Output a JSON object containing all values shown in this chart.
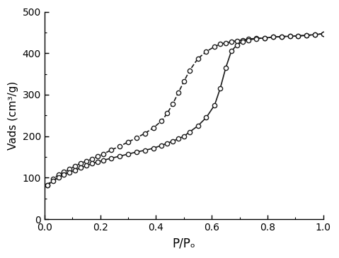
{
  "title": "",
  "xlabel": "P/Pₒ",
  "ylabel": "Vads (cm³/g)",
  "xlim": [
    0.0,
    1.0
  ],
  "ylim": [
    0,
    500
  ],
  "xticks": [
    0.0,
    0.2,
    0.4,
    0.6,
    0.8,
    1.0
  ],
  "yticks": [
    0,
    100,
    200,
    300,
    400,
    500
  ],
  "adsorption_x": [
    0.01,
    0.03,
    0.05,
    0.07,
    0.09,
    0.11,
    0.13,
    0.15,
    0.17,
    0.19,
    0.21,
    0.24,
    0.27,
    0.3,
    0.33,
    0.36,
    0.39,
    0.42,
    0.44,
    0.46,
    0.48,
    0.5,
    0.52,
    0.55,
    0.58,
    0.61,
    0.63,
    0.65,
    0.67,
    0.69,
    0.71,
    0.73,
    0.76,
    0.79,
    0.82,
    0.85,
    0.88,
    0.91,
    0.94,
    0.97,
    1.0
  ],
  "adsorption_y": [
    82,
    92,
    100,
    107,
    113,
    118,
    124,
    129,
    134,
    138,
    142,
    147,
    152,
    157,
    162,
    166,
    171,
    178,
    183,
    188,
    194,
    200,
    210,
    225,
    245,
    275,
    315,
    365,
    405,
    420,
    428,
    432,
    435,
    437,
    439,
    440,
    441,
    442,
    443,
    445,
    447
  ],
  "desorption_x": [
    1.0,
    0.97,
    0.94,
    0.91,
    0.88,
    0.85,
    0.82,
    0.79,
    0.76,
    0.73,
    0.71,
    0.69,
    0.67,
    0.65,
    0.63,
    0.61,
    0.58,
    0.55,
    0.52,
    0.5,
    0.48,
    0.46,
    0.44,
    0.42,
    0.39,
    0.36,
    0.33,
    0.3,
    0.27,
    0.24,
    0.21,
    0.19,
    0.17,
    0.15,
    0.13,
    0.11,
    0.09,
    0.07,
    0.05,
    0.03,
    0.01
  ],
  "desorption_y": [
    447,
    445,
    443,
    442,
    441,
    440,
    439,
    437,
    436,
    434,
    432,
    430,
    428,
    425,
    422,
    416,
    404,
    387,
    358,
    332,
    305,
    278,
    255,
    237,
    220,
    207,
    196,
    186,
    176,
    167,
    157,
    151,
    145,
    140,
    135,
    128,
    121,
    114,
    107,
    97,
    82
  ],
  "line_color": "#1a1a1a",
  "marker_facecolor": "white",
  "marker_edgecolor": "#1a1a1a",
  "marker_size": 4.5,
  "line_width": 1.2,
  "background_color": "#ffffff"
}
